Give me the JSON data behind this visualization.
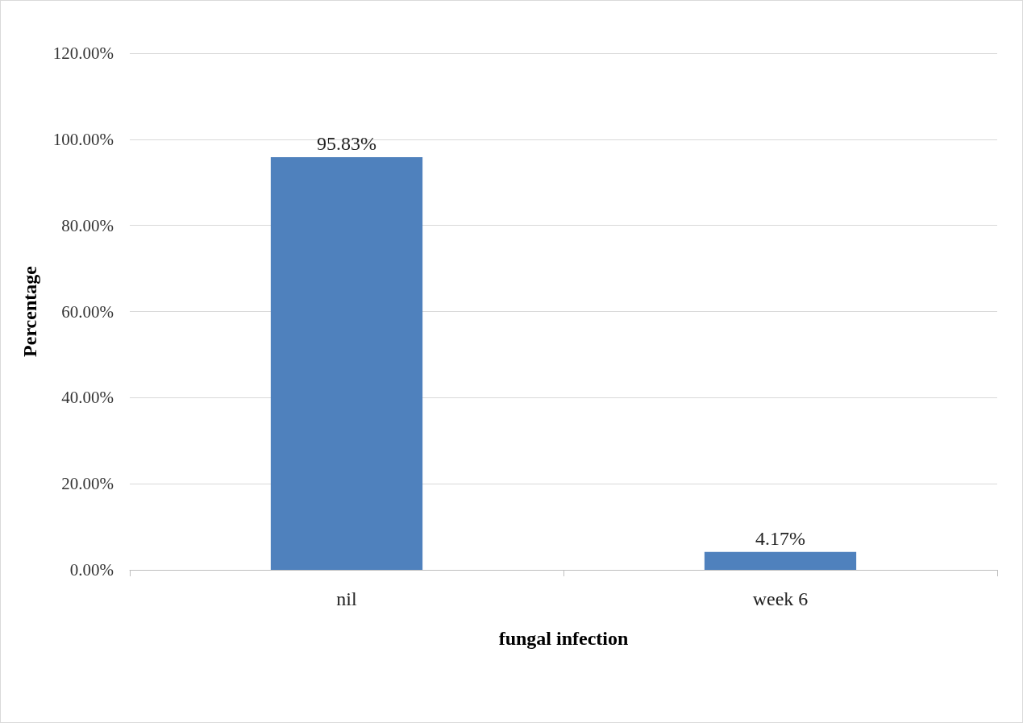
{
  "chart_data": {
    "type": "bar",
    "xlabel": "fungal infection",
    "ylabel": "Percentage",
    "categories": [
      "nil",
      "week 6"
    ],
    "values": [
      95.83,
      4.17
    ],
    "color": "#4f81bd",
    "value_labels": [
      "95.83%",
      "4.17%"
    ],
    "ylim": [
      0,
      120
    ],
    "yticks": [
      {
        "value": 0,
        "label": "0.00%"
      },
      {
        "value": 20,
        "label": "20.00%"
      },
      {
        "value": 40,
        "label": "40.00%"
      },
      {
        "value": 60,
        "label": "60.00%"
      },
      {
        "value": 80,
        "label": "80.00%"
      },
      {
        "value": 100,
        "label": "100.00%"
      },
      {
        "value": 120,
        "label": "120.00%"
      }
    ],
    "grid": "y"
  }
}
